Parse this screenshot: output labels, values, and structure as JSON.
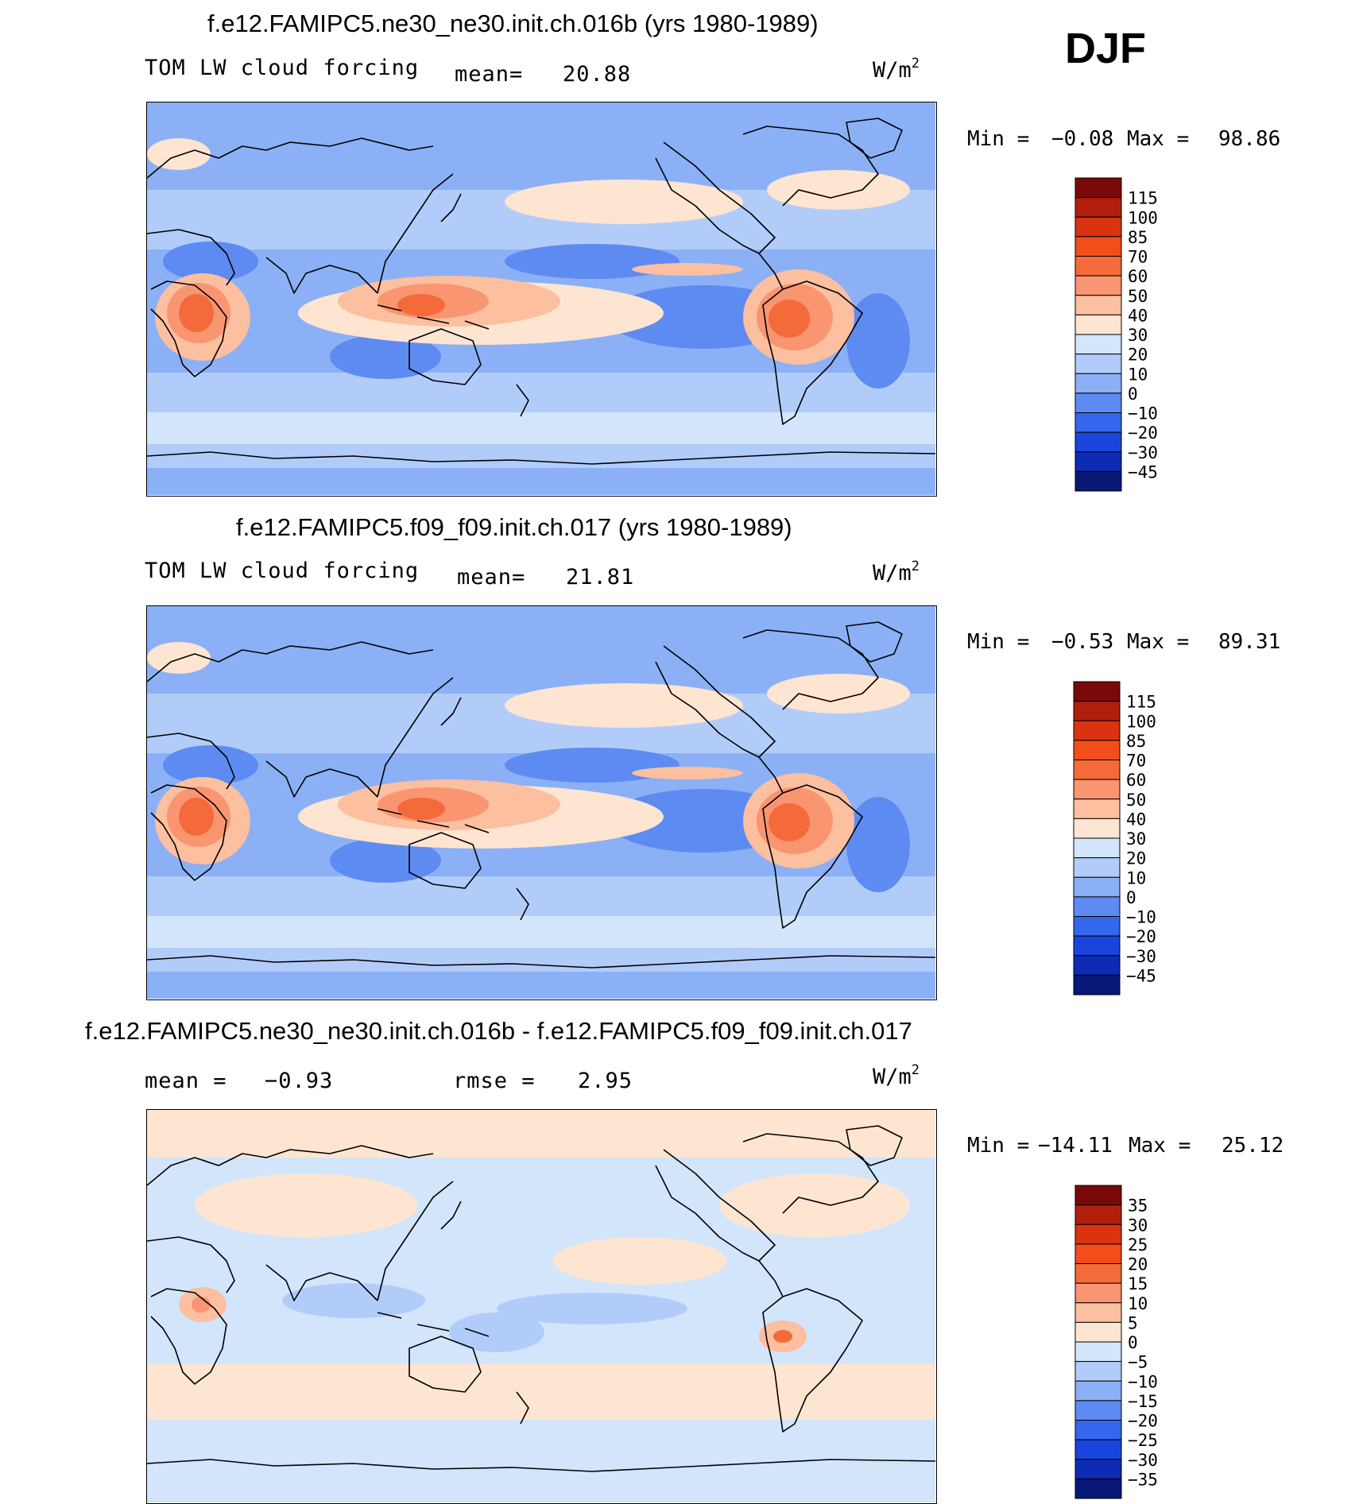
{
  "season": "DJF",
  "panels": [
    {
      "id": "top",
      "title": "f.e12.FAMIPC5.ne30_ne30.init.ch.016b (yrs 1980-1989)",
      "left_label": "TOM LW cloud forcing",
      "mean_label": "mean=",
      "mean_value": "20.88",
      "units": "W/m",
      "units_sup": "2",
      "min_label": "Min =",
      "min_value": "−0.08",
      "max_label": "Max =",
      "max_value": "98.86",
      "colorbar": {
        "labels": [
          "115",
          "100",
          "85",
          "70",
          "60",
          "50",
          "40",
          "30",
          "20",
          "10",
          "0",
          "−10",
          "−20",
          "−30",
          "−45"
        ],
        "colors": [
          "#7a0a0a",
          "#b01e0c",
          "#d9340f",
          "#f24e1c",
          "#f56a3a",
          "#f99570",
          "#fcbf9f",
          "#fde5d1",
          "#d2e5fb",
          "#b2ccfa",
          "#8cb0f6",
          "#5e8bf1",
          "#3467ee",
          "#1a45dd",
          "#0d2bb5",
          "#071877"
        ]
      },
      "chart_data": {
        "type": "heatmap",
        "title": "f.e12.FAMIPC5.ne30_ne30.init.ch.016b (yrs 1980-1989)",
        "variable": "TOM LW cloud forcing",
        "units": "W/m2",
        "mean": 20.88,
        "min": -0.08,
        "max": 98.86,
        "contour_levels": [
          -45,
          -30,
          -20,
          -10,
          0,
          10,
          20,
          30,
          40,
          50,
          60,
          70,
          85,
          100,
          115
        ]
      }
    },
    {
      "id": "middle",
      "title": "f.e12.FAMIPC5.f09_f09.init.ch.017 (yrs 1980-1989)",
      "left_label": "TOM LW cloud forcing",
      "mean_label": "mean=",
      "mean_value": "21.81",
      "units": "W/m",
      "units_sup": "2",
      "min_label": "Min =",
      "min_value": "−0.53",
      "max_label": "Max =",
      "max_value": "89.31",
      "colorbar": {
        "labels": [
          "115",
          "100",
          "85",
          "70",
          "60",
          "50",
          "40",
          "30",
          "20",
          "10",
          "0",
          "−10",
          "−20",
          "−30",
          "−45"
        ],
        "colors": [
          "#7a0a0a",
          "#b01e0c",
          "#d9340f",
          "#f24e1c",
          "#f56a3a",
          "#f99570",
          "#fcbf9f",
          "#fde5d1",
          "#d2e5fb",
          "#b2ccfa",
          "#8cb0f6",
          "#5e8bf1",
          "#3467ee",
          "#1a45dd",
          "#0d2bb5",
          "#071877"
        ]
      },
      "chart_data": {
        "type": "heatmap",
        "title": "f.e12.FAMIPC5.f09_f09.init.ch.017 (yrs 1980-1989)",
        "variable": "TOM LW cloud forcing",
        "units": "W/m2",
        "mean": 21.81,
        "min": -0.53,
        "max": 89.31,
        "contour_levels": [
          -45,
          -30,
          -20,
          -10,
          0,
          10,
          20,
          30,
          40,
          50,
          60,
          70,
          85,
          100,
          115
        ]
      }
    },
    {
      "id": "diff",
      "title": "f.e12.FAMIPC5.ne30_ne30.init.ch.016b - f.e12.FAMIPC5.f09_f09.init.ch.017",
      "mean_label": "mean =",
      "mean_value": "−0.93",
      "rmse_label": "rmse =",
      "rmse_value": "2.95",
      "units": "W/m",
      "units_sup": "2",
      "min_label": "Min =",
      "min_value": "−14.11",
      "max_label": "Max =",
      "max_value": "25.12",
      "colorbar": {
        "labels": [
          "35",
          "30",
          "25",
          "20",
          "15",
          "10",
          "5",
          "0",
          "−5",
          "−10",
          "−15",
          "−20",
          "−25",
          "−30",
          "−35"
        ],
        "colors": [
          "#7a0a0a",
          "#b01e0c",
          "#d9340f",
          "#f24e1c",
          "#f56a3a",
          "#f99570",
          "#fcbf9f",
          "#fde5d1",
          "#d2e5fb",
          "#b2ccfa",
          "#8cb0f6",
          "#5e8bf1",
          "#3467ee",
          "#1a45dd",
          "#0d2bb5",
          "#071877"
        ]
      },
      "chart_data": {
        "type": "heatmap",
        "title": "f.e12.FAMIPC5.ne30_ne30.init.ch.016b - f.e12.FAMIPC5.f09_f09.init.ch.017",
        "units": "W/m2",
        "mean": -0.93,
        "rmse": 2.95,
        "min": -14.11,
        "max": 25.12,
        "contour_levels": [
          -35,
          -30,
          -25,
          -20,
          -15,
          -10,
          -5,
          0,
          5,
          10,
          15,
          20,
          25,
          30,
          35
        ]
      }
    }
  ]
}
